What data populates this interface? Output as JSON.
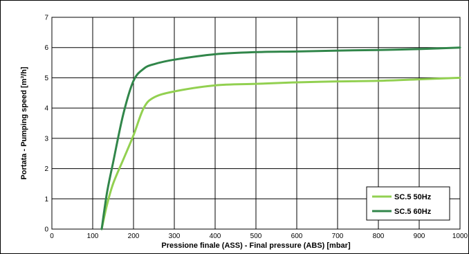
{
  "chart_data": {
    "type": "line",
    "title": "",
    "xlabel": "Pressione finale (ASS) - Final pressure (ABS) [mbar]",
    "ylabel": "Portata - Pumping speed [m³/h]",
    "xlim": [
      0,
      1000
    ],
    "ylim": [
      0,
      7
    ],
    "xticks": [
      "0",
      "100",
      "200",
      "300",
      "400",
      "500",
      "600",
      "700",
      "800",
      "900",
      "1000"
    ],
    "yticks": [
      "0",
      "1",
      "2",
      "3",
      "4",
      "5",
      "6",
      "7"
    ],
    "grid": true,
    "legend_position": "bottom-right",
    "series": [
      {
        "name": "SC.5 50Hz",
        "color": "#92d050",
        "x": [
          122,
          135,
          150,
          175,
          200,
          225,
          250,
          300,
          400,
          500,
          600,
          700,
          800,
          900,
          1000
        ],
        "y": [
          0,
          0.8,
          1.5,
          2.3,
          3.1,
          4.0,
          4.35,
          4.55,
          4.75,
          4.8,
          4.85,
          4.88,
          4.9,
          4.95,
          5.0
        ]
      },
      {
        "name": "SC.5 60Hz",
        "color": "#31864a",
        "x": [
          122,
          135,
          150,
          175,
          200,
          225,
          250,
          300,
          400,
          500,
          600,
          700,
          800,
          900,
          1000
        ],
        "y": [
          0,
          1.2,
          2.2,
          3.8,
          4.9,
          5.3,
          5.45,
          5.6,
          5.78,
          5.85,
          5.87,
          5.9,
          5.92,
          5.95,
          6.0
        ]
      }
    ]
  }
}
